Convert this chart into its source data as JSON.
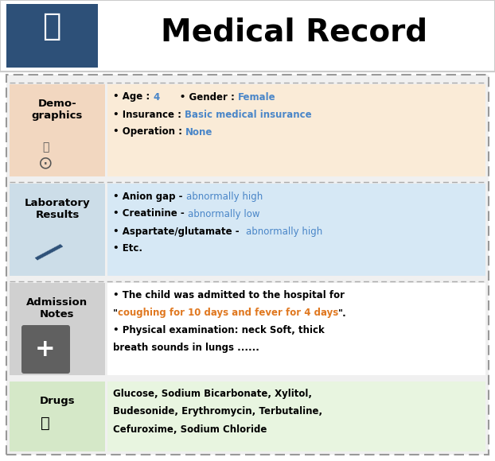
{
  "title": "Medical Record",
  "title_fontsize": 28,
  "header_bg": "#2d5078",
  "outer_bg": "#f5f5f5",
  "outer_border_color": "#999999",
  "sections": [
    {
      "label": "Demo-\ngraphics",
      "label_bg": "#f2d7c0",
      "content_bg": "#faebd7",
      "content_lines": [
        {
          "parts": [
            {
              "text": "• Age : ",
              "color": "#000000",
              "bold": true
            },
            {
              "text": "4",
              "color": "#4a86c8",
              "bold": true
            },
            {
              "text": "      • Gender : ",
              "color": "#000000",
              "bold": true
            },
            {
              "text": "Female",
              "color": "#4a86c8",
              "bold": true
            }
          ]
        },
        {
          "parts": [
            {
              "text": "• Insurance : ",
              "color": "#000000",
              "bold": true
            },
            {
              "text": "Basic medical insurance",
              "color": "#4a86c8",
              "bold": true
            }
          ]
        },
        {
          "parts": [
            {
              "text": "• Operation : ",
              "color": "#000000",
              "bold": true
            },
            {
              "text": "None",
              "color": "#4a86c8",
              "bold": true
            }
          ]
        }
      ]
    },
    {
      "label": "Laboratory\nResults",
      "label_bg": "#ccdde8",
      "content_bg": "#d6e8f5",
      "content_lines": [
        {
          "parts": [
            {
              "text": "• Anion gap - ",
              "color": "#000000",
              "bold": true
            },
            {
              "text": "abnormally high",
              "color": "#4a86c8",
              "bold": false
            }
          ]
        },
        {
          "parts": [
            {
              "text": "• Creatinine - ",
              "color": "#000000",
              "bold": true
            },
            {
              "text": "abnormally low",
              "color": "#4a86c8",
              "bold": false
            }
          ]
        },
        {
          "parts": [
            {
              "text": "• Aspartate/glutamate -  ",
              "color": "#000000",
              "bold": true
            },
            {
              "text": "abnormally high",
              "color": "#4a86c8",
              "bold": false
            }
          ]
        },
        {
          "parts": [
            {
              "text": "• Etc.",
              "color": "#000000",
              "bold": true
            }
          ]
        }
      ]
    },
    {
      "label": "Admission\nNotes",
      "label_bg": "#d0d0d0",
      "content_bg": "#ffffff",
      "content_lines": [
        {
          "parts": [
            {
              "text": "• The child was admitted to the hospital for",
              "color": "#000000",
              "bold": true
            }
          ]
        },
        {
          "parts": [
            {
              "text": "\"",
              "color": "#000000",
              "bold": true
            },
            {
              "text": "coughing for 10 days and fever for 4 days",
              "color": "#e07820",
              "bold": true
            },
            {
              "text": "\".",
              "color": "#000000",
              "bold": true
            }
          ]
        },
        {
          "parts": [
            {
              "text": "• Physical examination: neck Soft, thick",
              "color": "#000000",
              "bold": true
            }
          ]
        },
        {
          "parts": [
            {
              "text": "breath sounds in lungs ......",
              "color": "#000000",
              "bold": true
            }
          ]
        }
      ]
    },
    {
      "label": "Drugs",
      "label_bg": "#d5e8c8",
      "content_bg": "#e8f5e0",
      "content_lines": [
        {
          "parts": [
            {
              "text": "Glucose, Sodium Bicarbonate, Xylitol,",
              "color": "#000000",
              "bold": true
            }
          ]
        },
        {
          "parts": [
            {
              "text": "Budesonide, Erythromycin, Terbutaline,",
              "color": "#000000",
              "bold": true
            }
          ]
        },
        {
          "parts": [
            {
              "text": "Cefuroxime, Sodium Chloride",
              "color": "#000000",
              "bold": true
            }
          ]
        }
      ]
    }
  ]
}
